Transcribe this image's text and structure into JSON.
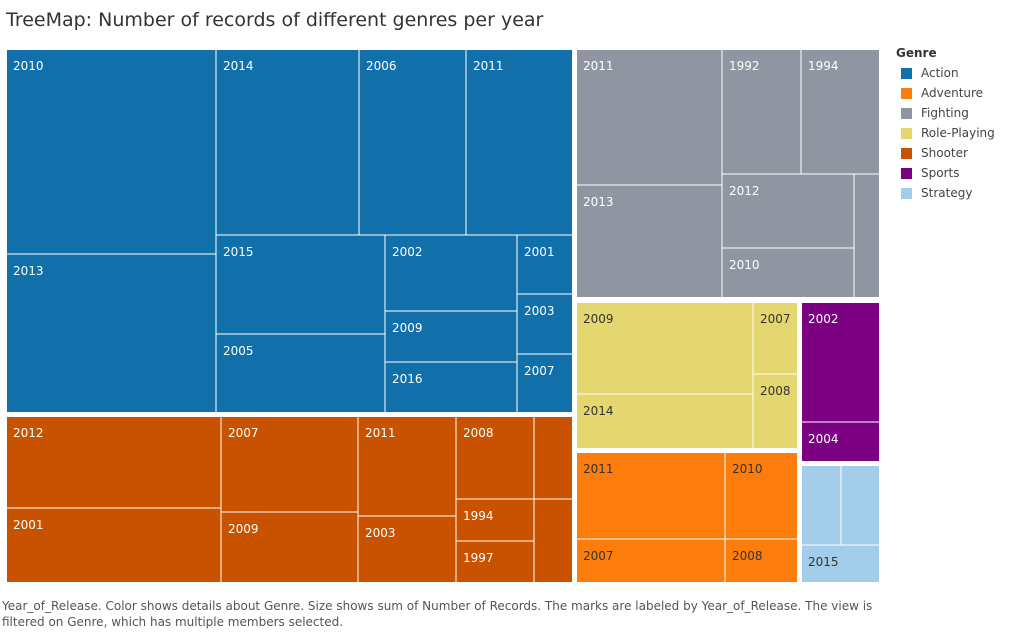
{
  "title": "TreeMap: Number of records of different genres per year",
  "caption": "Year_of_Release.  Color shows details about Genre.  Size shows sum of Number of Records.  The marks are labeled by Year_of_Release. The view is filtered on Genre, which has multiple members selected.",
  "legend": {
    "title": "Genre",
    "items": [
      {
        "label": "Action",
        "color": "#1170aa"
      },
      {
        "label": "Adventure",
        "color": "#fc7d0b"
      },
      {
        "label": "Fighting",
        "color": "#8f96a1"
      },
      {
        "label": "Role-Playing",
        "color": "#e5d76f"
      },
      {
        "label": "Shooter",
        "color": "#c85200"
      },
      {
        "label": "Sports",
        "color": "#7b0082"
      },
      {
        "label": "Strategy",
        "color": "#a3cce9"
      }
    ]
  },
  "chart_data": {
    "type": "treemap",
    "title": "TreeMap: Number of records of different genres per year",
    "size_measure": "Number of Records",
    "label_field": "Year_of_Release",
    "color_field": "Genre",
    "groups": [
      {
        "genre": "Action",
        "color": "#1170aa",
        "label_color": "#ffffff",
        "items": [
          {
            "year": "2010",
            "value": 51
          },
          {
            "year": "2013",
            "value": 38
          },
          {
            "year": "2014",
            "value": 26
          },
          {
            "year": "2006",
            "value": 20
          },
          {
            "year": "2011",
            "value": 19
          },
          {
            "year": "2015",
            "value": 15
          },
          {
            "year": "2005",
            "value": 12
          },
          {
            "year": "2002",
            "value": 10
          },
          {
            "year": "2009",
            "value": 8
          },
          {
            "year": "2016",
            "value": 8
          },
          {
            "year": "2001",
            "value": 5
          },
          {
            "year": "2003",
            "value": 5
          },
          {
            "year": "2007",
            "value": 5
          }
        ]
      },
      {
        "genre": "Shooter",
        "color": "#c85200",
        "label_color": "#ffffff",
        "items": [
          {
            "year": "2012",
            "value": 16
          },
          {
            "year": "2001",
            "value": 12
          },
          {
            "year": "2007",
            "value": 12
          },
          {
            "year": "2009",
            "value": 10
          },
          {
            "year": "2011",
            "value": 10
          },
          {
            "year": "2003",
            "value": 7
          },
          {
            "year": "2008",
            "value": 8
          },
          {
            "year": "1994",
            "value": 4
          },
          {
            "year": "1997",
            "value": 4
          },
          {
            "year": "",
            "value": 3
          },
          {
            "year": "",
            "value": 3
          }
        ]
      },
      {
        "genre": "Fighting",
        "color": "#8f96a1",
        "label_color": "#ffffff",
        "items": [
          {
            "year": "2011",
            "value": 16
          },
          {
            "year": "2013",
            "value": 13
          },
          {
            "year": "1992",
            "value": 7
          },
          {
            "year": "1994",
            "value": 7
          },
          {
            "year": "2012",
            "value": 6
          },
          {
            "year": "2010",
            "value": 5
          },
          {
            "year": "",
            "value": 4
          }
        ]
      },
      {
        "genre": "Role-Playing",
        "color": "#e5d76f",
        "label_color": "#333333",
        "items": [
          {
            "year": "2009",
            "value": 10
          },
          {
            "year": "2014",
            "value": 6
          },
          {
            "year": "2007",
            "value": 3
          },
          {
            "year": "2008",
            "value": 3
          }
        ]
      },
      {
        "genre": "Adventure",
        "color": "#fc7d0b",
        "label_color": "#333333",
        "items": [
          {
            "year": "2011",
            "value": 8
          },
          {
            "year": "2010",
            "value": 5
          },
          {
            "year": "2007",
            "value": 4
          },
          {
            "year": "2008",
            "value": 3
          }
        ]
      },
      {
        "genre": "Sports",
        "color": "#7b0082",
        "label_color": "#ffffff",
        "items": [
          {
            "year": "2002",
            "value": 6
          },
          {
            "year": "2004",
            "value": 2
          }
        ]
      },
      {
        "genre": "Strategy",
        "color": "#a3cce9",
        "label_color": "#333333",
        "items": [
          {
            "year": "",
            "value": 2
          },
          {
            "year": "",
            "value": 2
          },
          {
            "year": "2015",
            "value": 1
          }
        ]
      }
    ]
  }
}
